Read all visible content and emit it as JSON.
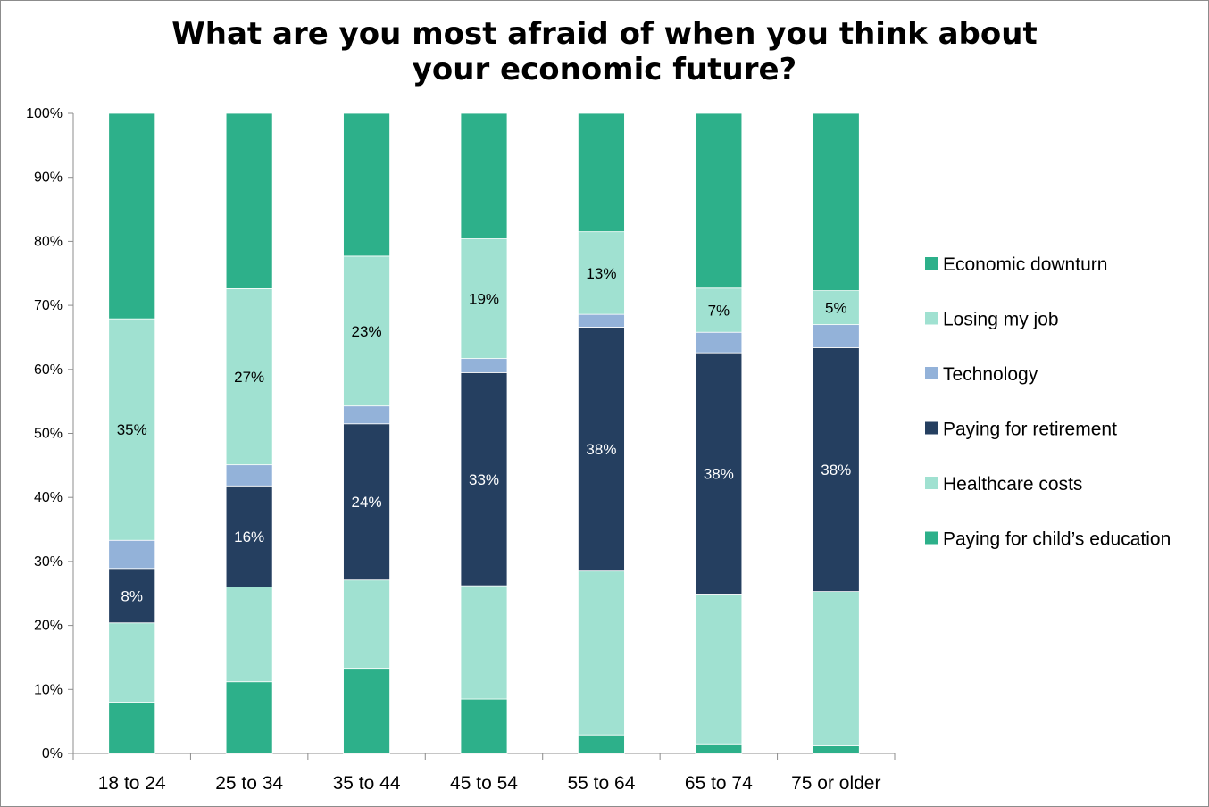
{
  "chart_data": {
    "type": "bar",
    "stacked": true,
    "title": "What are you most afraid of when you think about\nyour economic future?",
    "xlabel": "",
    "ylabel": "",
    "ylim": [
      0,
      100
    ],
    "yticks": [
      "0%",
      "10%",
      "20%",
      "30%",
      "40%",
      "50%",
      "60%",
      "70%",
      "80%",
      "90%",
      "100%"
    ],
    "categories": [
      "18 to 24",
      "25 to 34",
      "35 to 44",
      "45 to 54",
      "55 to 64",
      "65 to 74",
      "75 or older"
    ],
    "legend_position": "right",
    "grid": false,
    "series": [
      {
        "name": "Paying for child’s education",
        "color": "#2db08a",
        "values": [
          8,
          11.2,
          13.3,
          8.5,
          2.9,
          1.5,
          1.2
        ],
        "labels": [
          "",
          "",
          "",
          "",
          "",
          "",
          ""
        ]
      },
      {
        "name": "Healthcare costs",
        "color": "#a0e1d1",
        "values": [
          12.4,
          14.8,
          13.8,
          17.7,
          25.6,
          23.4,
          24.1
        ],
        "labels": [
          "",
          "",
          "",
          "",
          "",
          "",
          ""
        ]
      },
      {
        "name": "Paying for retirement",
        "color": "#253f60",
        "values": [
          8.5,
          15.8,
          24.4,
          33.3,
          38.1,
          37.7,
          38.1
        ],
        "labels": [
          "8%",
          "16%",
          "24%",
          "33%",
          "38%",
          "38%",
          "38%"
        ]
      },
      {
        "name": "Technology",
        "color": "#93b2d9",
        "values": [
          4.4,
          3.3,
          2.8,
          2.2,
          2.0,
          3.2,
          3.6
        ],
        "labels": [
          "",
          "",
          "",
          "",
          "",
          "",
          ""
        ]
      },
      {
        "name": "Losing my job",
        "color": "#a0e1d1",
        "values": [
          34.6,
          27.5,
          23.4,
          18.7,
          12.9,
          6.9,
          5.3
        ],
        "labels": [
          "35%",
          "27%",
          "23%",
          "19%",
          "13%",
          "7%",
          "5%"
        ]
      },
      {
        "name": "Economic downturn",
        "color": "#2db08a",
        "values": [
          32.1,
          27.4,
          22.3,
          19.6,
          18.5,
          27.3,
          27.7
        ],
        "labels": [
          "",
          "",
          "",
          "",
          "",
          "",
          ""
        ]
      }
    ],
    "legend_order": [
      "Economic downturn",
      "Losing my job",
      "Technology",
      "Paying for retirement",
      "Healthcare costs",
      "Paying for child’s education"
    ]
  }
}
